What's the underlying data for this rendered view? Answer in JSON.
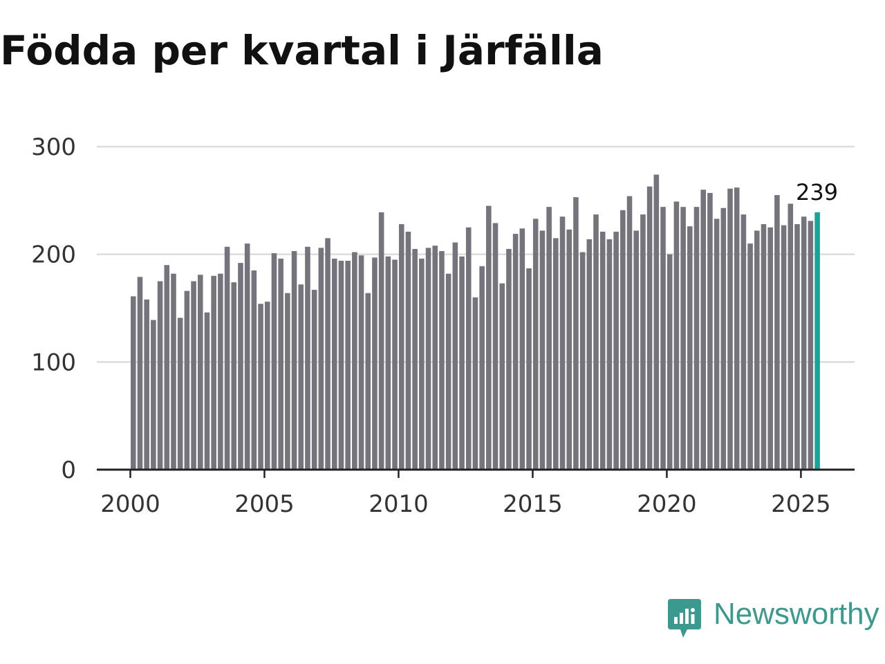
{
  "chart_data": {
    "type": "bar",
    "title": "Födda per kvartal i Järfälla",
    "xlabel": "",
    "ylabel": "",
    "ylim": [
      0,
      300
    ],
    "y_ticks": [
      0,
      100,
      200,
      300
    ],
    "x_range": [
      1998.75,
      2027.0
    ],
    "x_ticks": [
      2000,
      2005,
      2010,
      2015,
      2020,
      2025
    ],
    "x_tick_labels": [
      "2000",
      "2005",
      "2010",
      "2015",
      "2020",
      "2025"
    ],
    "grid": true,
    "bar_color": "#75737b",
    "highlight_color": "#1aa398",
    "highlight_label": "239",
    "categories": [
      "2000Q1",
      "2000Q2",
      "2000Q3",
      "2000Q4",
      "2001Q1",
      "2001Q2",
      "2001Q3",
      "2001Q4",
      "2002Q1",
      "2002Q2",
      "2002Q3",
      "2002Q4",
      "2003Q1",
      "2003Q2",
      "2003Q3",
      "2003Q4",
      "2004Q1",
      "2004Q2",
      "2004Q3",
      "2004Q4",
      "2005Q1",
      "2005Q2",
      "2005Q3",
      "2005Q4",
      "2006Q1",
      "2006Q2",
      "2006Q3",
      "2006Q4",
      "2007Q1",
      "2007Q2",
      "2007Q3",
      "2007Q4",
      "2008Q1",
      "2008Q2",
      "2008Q3",
      "2008Q4",
      "2009Q1",
      "2009Q2",
      "2009Q3",
      "2009Q4",
      "2010Q1",
      "2010Q2",
      "2010Q3",
      "2010Q4",
      "2011Q1",
      "2011Q2",
      "2011Q3",
      "2011Q4",
      "2012Q1",
      "2012Q2",
      "2012Q3",
      "2012Q4",
      "2013Q1",
      "2013Q2",
      "2013Q3",
      "2013Q4",
      "2014Q1",
      "2014Q2",
      "2014Q3",
      "2014Q4",
      "2015Q1",
      "2015Q2",
      "2015Q3",
      "2015Q4",
      "2016Q1",
      "2016Q2",
      "2016Q3",
      "2016Q4",
      "2017Q1",
      "2017Q2",
      "2017Q3",
      "2017Q4",
      "2018Q1",
      "2018Q2",
      "2018Q3",
      "2018Q4",
      "2019Q1",
      "2019Q2",
      "2019Q3",
      "2019Q4",
      "2020Q1",
      "2020Q2",
      "2020Q3",
      "2020Q4",
      "2021Q1",
      "2021Q2",
      "2021Q3",
      "2021Q4",
      "2022Q1",
      "2022Q2",
      "2022Q3",
      "2022Q4",
      "2023Q1",
      "2023Q2",
      "2023Q3",
      "2023Q4",
      "2024Q1",
      "2024Q2",
      "2024Q3",
      "2024Q4",
      "2025Q1",
      "2025Q2",
      "2025Q3"
    ],
    "values": [
      161,
      179,
      158,
      139,
      175,
      190,
      182,
      141,
      166,
      175,
      181,
      146,
      180,
      182,
      207,
      174,
      192,
      210,
      185,
      154,
      156,
      201,
      196,
      164,
      203,
      172,
      207,
      167,
      206,
      215,
      196,
      194,
      194,
      202,
      199,
      164,
      197,
      239,
      198,
      195,
      228,
      221,
      205,
      196,
      206,
      208,
      203,
      182,
      211,
      198,
      225,
      160,
      189,
      245,
      229,
      173,
      205,
      219,
      224,
      187,
      233,
      222,
      244,
      215,
      235,
      223,
      253,
      202,
      214,
      237,
      221,
      214,
      221,
      241,
      254,
      222,
      237,
      263,
      274,
      244,
      200,
      249,
      244,
      226,
      244,
      260,
      257,
      233,
      243,
      261,
      262,
      237,
      210,
      222,
      228,
      225,
      255,
      227,
      247,
      228,
      235,
      231,
      239
    ]
  },
  "brand": {
    "name": "Newsworthy",
    "color": "#3a9a8f"
  }
}
